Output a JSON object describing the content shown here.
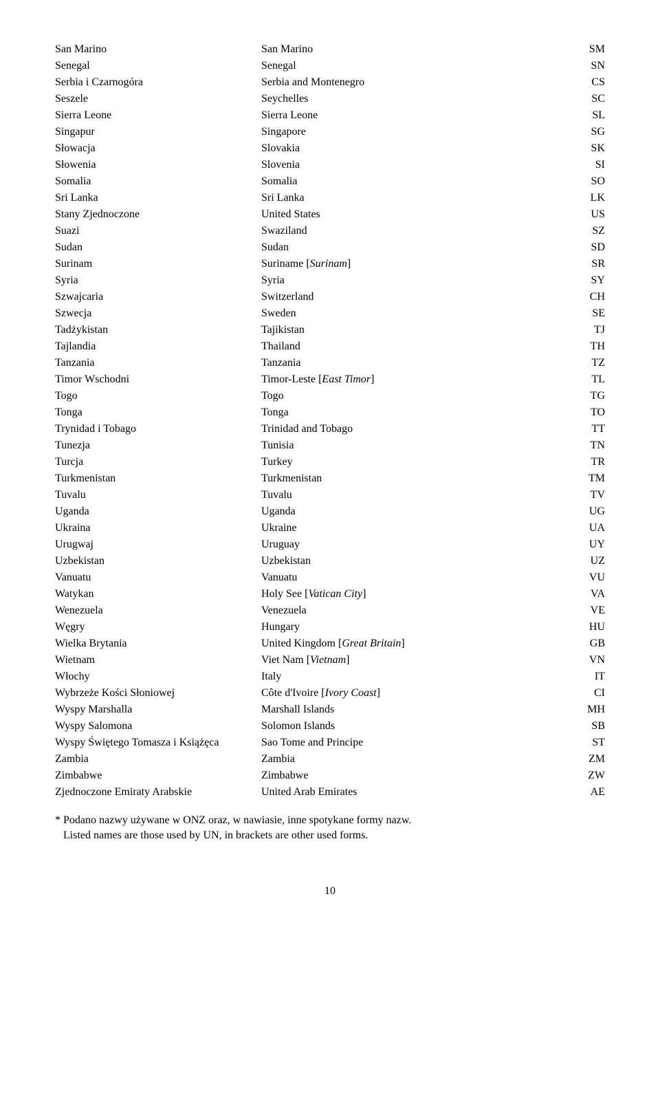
{
  "rows": [
    {
      "a": "San Marino",
      "b": "San Marino",
      "c": "SM"
    },
    {
      "a": "Senegal",
      "b": "Senegal",
      "c": "SN"
    },
    {
      "a": "Serbia i Czarnogóra",
      "b": "Serbia and Montenegro",
      "c": "CS"
    },
    {
      "a": "Seszele",
      "b": "Seychelles",
      "c": "SC"
    },
    {
      "a": "Sierra Leone",
      "b": "Sierra Leone",
      "c": "SL"
    },
    {
      "a": "Singapur",
      "b": "Singapore",
      "c": "SG"
    },
    {
      "a": "Słowacja",
      "b": "Slovakia",
      "c": "SK"
    },
    {
      "a": "Słowenia",
      "b": "Slovenia",
      "c": "SI"
    },
    {
      "a": "Somalia",
      "b": "Somalia",
      "c": "SO"
    },
    {
      "a": "Sri Lanka",
      "b": "Sri Lanka",
      "c": "LK"
    },
    {
      "a": "Stany Zjednoczone",
      "b": "United States",
      "c": "US"
    },
    {
      "a": "Suazi",
      "b": "Swaziland",
      "c": "SZ"
    },
    {
      "a": "Sudan",
      "b": "Sudan",
      "c": "SD"
    },
    {
      "a": "Surinam",
      "b_pre": "Suriname [",
      "b_it": "Surinam",
      "b_post": "]",
      "c": "SR"
    },
    {
      "a": "Syria",
      "b": "Syria",
      "c": "SY"
    },
    {
      "a": "Szwajcaria",
      "b": "Switzerland",
      "c": "CH"
    },
    {
      "a": "Szwecja",
      "b": "Sweden",
      "c": "SE"
    },
    {
      "a": "Tadżykistan",
      "b": "Tajikistan",
      "c": "TJ"
    },
    {
      "a": "Tajlandia",
      "b": "Thailand",
      "c": "TH"
    },
    {
      "a": "Tanzania",
      "b": "Tanzania",
      "c": "TZ"
    },
    {
      "a": "Timor Wschodni",
      "b_pre": "Timor-Leste [",
      "b_it": "East Timor",
      "b_post": "]",
      "c": "TL"
    },
    {
      "a": "Togo",
      "b": "Togo",
      "c": "TG"
    },
    {
      "a": "Tonga",
      "b": "Tonga",
      "c": "TO"
    },
    {
      "a": "Trynidad i Tobago",
      "b": "Trinidad and Tobago",
      "c": "TT"
    },
    {
      "a": "Tunezja",
      "b": "Tunisia",
      "c": "TN"
    },
    {
      "a": "Turcja",
      "b": "Turkey",
      "c": "TR"
    },
    {
      "a": "Turkmenistan",
      "b": "Turkmenistan",
      "c": "TM"
    },
    {
      "a": "Tuvalu",
      "b": "Tuvalu",
      "c": "TV"
    },
    {
      "a": "Uganda",
      "b": "Uganda",
      "c": "UG"
    },
    {
      "a": "Ukraina",
      "b": "Ukraine",
      "c": "UA"
    },
    {
      "a": "Urugwaj",
      "b": "Uruguay",
      "c": "UY"
    },
    {
      "a": "Uzbekistan",
      "b": "Uzbekistan",
      "c": "UZ"
    },
    {
      "a": "Vanuatu",
      "b": "Vanuatu",
      "c": "VU"
    },
    {
      "a": "Watykan",
      "b_pre": "Holy See [",
      "b_it": "Vatican City",
      "b_post": "]",
      "c": "VA"
    },
    {
      "a": "Wenezuela",
      "b": "Venezuela",
      "c": "VE"
    },
    {
      "a": "Węgry",
      "b": "Hungary",
      "c": "HU"
    },
    {
      "a": "Wielka Brytania",
      "b_pre": "United Kingdom [",
      "b_it": "Great Britain",
      "b_post": "]",
      "c": "GB"
    },
    {
      "a": "Wietnam",
      "b_pre": "Viet Nam [",
      "b_it": "Vietnam",
      "b_post": "]",
      "c": "VN"
    },
    {
      "a": "Włochy",
      "b": "Italy",
      "c": "IT"
    },
    {
      "a": "Wybrzeże Kości Słoniowej",
      "b_pre": "Côte d'Ivoire [",
      "b_it": "Ivory Coast",
      "b_post": "]",
      "c": "CI"
    },
    {
      "a": "Wyspy Marshalla",
      "b": "Marshall Islands",
      "c": "MH"
    },
    {
      "a": "Wyspy Salomona",
      "b": "Solomon Islands",
      "c": "SB"
    },
    {
      "a": "Wyspy Świętego Tomasza i Książęca",
      "b": "Sao Tome and Principe",
      "c": "ST"
    },
    {
      "a": "Zambia",
      "b": "Zambia",
      "c": "ZM"
    },
    {
      "a": "Zimbabwe",
      "b": "Zimbabwe",
      "c": "ZW"
    },
    {
      "a": "Zjednoczone Emiraty Arabskie",
      "b": "United Arab Emirates",
      "c": "AE"
    }
  ],
  "footnote1": "* Podano nazwy używane w ONZ oraz, w nawiasie, inne spotykane formy nazw.",
  "footnote2": "Listed names are those used by UN, in brackets are other used forms.",
  "pageNumber": "10"
}
